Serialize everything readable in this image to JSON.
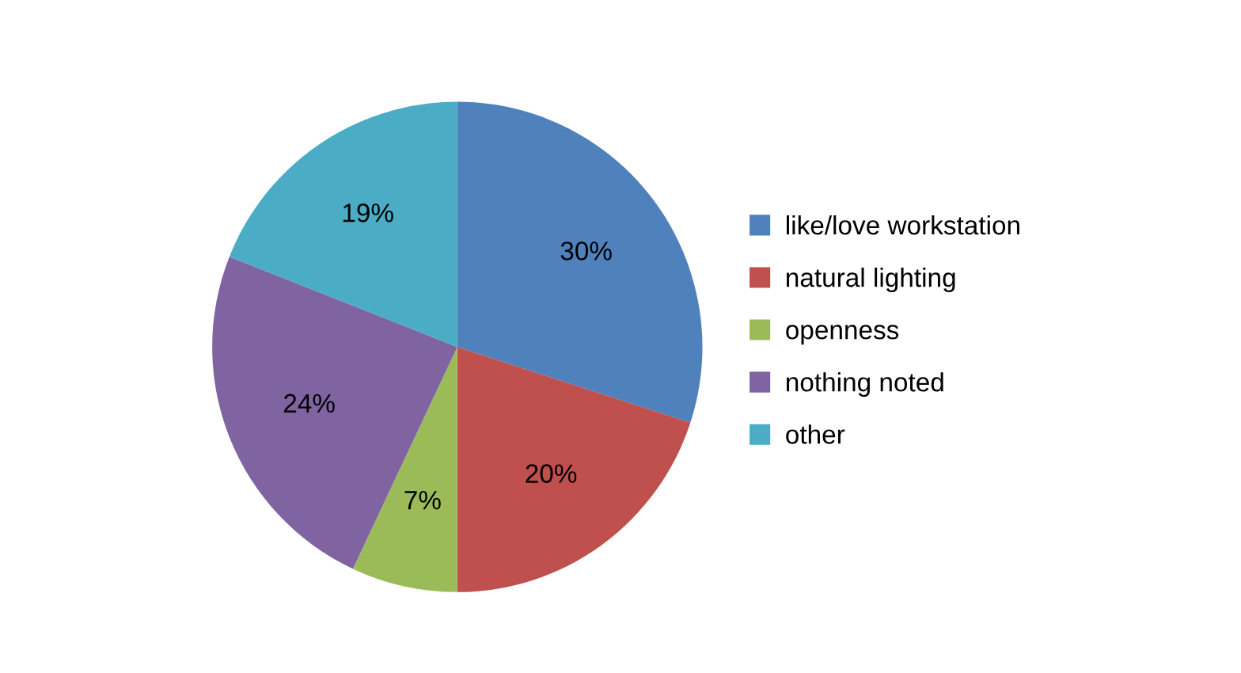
{
  "chart_data": {
    "type": "pie",
    "categories": [
      "like/love workstation",
      "natural lighting",
      "openness",
      "nothing noted",
      "other"
    ],
    "values": [
      30,
      20,
      7,
      24,
      19
    ],
    "colors": [
      "#4f81bd",
      "#c0504d",
      "#9bbb59",
      "#8064a2",
      "#4bacc6"
    ],
    "value_labels": [
      "30%",
      "20%",
      "7%",
      "24%",
      "19%"
    ],
    "legend": "right"
  }
}
